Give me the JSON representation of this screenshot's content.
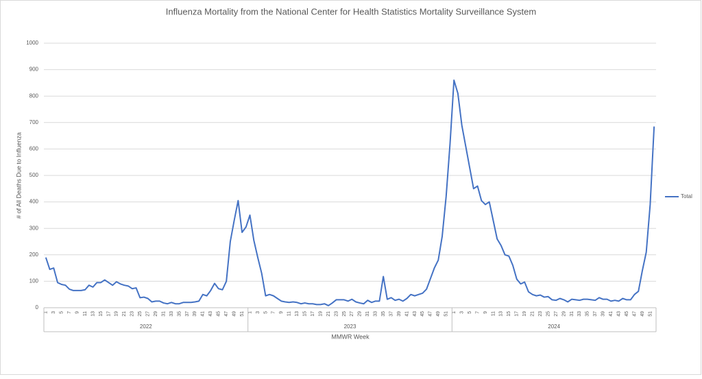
{
  "chart_data": {
    "type": "line",
    "title": "Influenza Mortality from the National Center for Health Statistics Mortality Surveillance System",
    "x_label": "MMWR Week",
    "y_label": "# of All Deaths Due to Influenza",
    "x_groups": [
      "2022",
      "2023",
      "2024"
    ],
    "categories": [
      1,
      null,
      3,
      null,
      5,
      null,
      7,
      null,
      9,
      null,
      11,
      null,
      13,
      null,
      15,
      null,
      17,
      null,
      19,
      null,
      21,
      null,
      23,
      null,
      25,
      null,
      27,
      null,
      29,
      null,
      31,
      null,
      33,
      null,
      35,
      null,
      37,
      null,
      39,
      null,
      41,
      null,
      43,
      null,
      45,
      null,
      47,
      null,
      49,
      null,
      51,
      null,
      1,
      null,
      3,
      null,
      5,
      null,
      7,
      null,
      9,
      null,
      11,
      null,
      13,
      null,
      15,
      null,
      17,
      null,
      19,
      null,
      21,
      null,
      23,
      null,
      25,
      null,
      27,
      null,
      29,
      null,
      31,
      null,
      33,
      null,
      35,
      null,
      37,
      null,
      39,
      null,
      41,
      null,
      43,
      null,
      45,
      null,
      47,
      null,
      49,
      null,
      51,
      null,
      1,
      null,
      3,
      null,
      5,
      null,
      7,
      null,
      9,
      null,
      11,
      null,
      13,
      null,
      15,
      null,
      17,
      null,
      19,
      null,
      21,
      null,
      23,
      null,
      25,
      null,
      27,
      null,
      29,
      null,
      31,
      null,
      33,
      null,
      35,
      null,
      37,
      null,
      39,
      null,
      41,
      null,
      43,
      null,
      45,
      null,
      47,
      null,
      49,
      null,
      51,
      null
    ],
    "series": [
      {
        "name": "Total",
        "color": "#4472c4",
        "values": [
          190,
          145,
          150,
          95,
          88,
          85,
          70,
          65,
          65,
          65,
          68,
          85,
          78,
          95,
          95,
          105,
          95,
          85,
          98,
          90,
          85,
          82,
          72,
          75,
          38,
          40,
          35,
          22,
          25,
          25,
          18,
          15,
          20,
          15,
          15,
          20,
          20,
          20,
          22,
          25,
          50,
          45,
          65,
          92,
          72,
          68,
          100,
          250,
          330,
          405,
          285,
          305,
          350,
          255,
          190,
          130,
          45,
          50,
          45,
          35,
          25,
          22,
          20,
          22,
          20,
          15,
          18,
          15,
          15,
          12,
          12,
          15,
          8,
          18,
          30,
          30,
          30,
          25,
          32,
          22,
          18,
          15,
          28,
          20,
          25,
          25,
          118,
          32,
          38,
          28,
          32,
          25,
          35,
          50,
          45,
          50,
          55,
          70,
          110,
          150,
          180,
          270,
          420,
          620,
          860,
          810,
          690,
          610,
          530,
          450,
          460,
          405,
          390,
          400,
          330,
          260,
          235,
          200,
          195,
          160,
          108,
          90,
          97,
          60,
          50,
          45,
          48,
          40,
          42,
          30,
          28,
          35,
          30,
          22,
          32,
          30,
          28,
          32,
          32,
          30,
          28,
          38,
          32,
          32,
          25,
          28,
          25,
          35,
          30,
          30,
          50,
          62,
          140,
          210,
          390,
          685
        ]
      }
    ],
    "ylim": [
      0,
      1000
    ],
    "yticks": [
      0,
      100,
      200,
      300,
      400,
      500,
      600,
      700,
      800,
      900,
      1000
    ],
    "grid": true,
    "legend": "right"
  }
}
